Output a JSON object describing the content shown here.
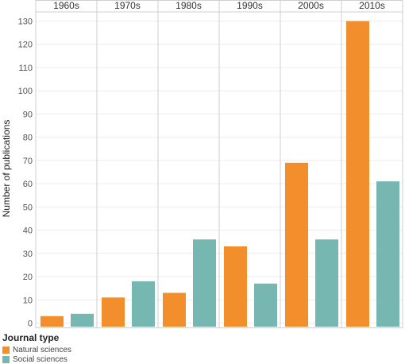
{
  "chart_data": {
    "type": "bar",
    "categories": [
      "1960s",
      "1970s",
      "1980s",
      "1990s",
      "2000s",
      "2010s"
    ],
    "series": [
      {
        "name": "Natural sciences",
        "color": "#F28E2B",
        "values": [
          3,
          11,
          13,
          33,
          69,
          130
        ]
      },
      {
        "name": "Social sciences",
        "color": "#76B7B2",
        "values": [
          4,
          18,
          36,
          17,
          36,
          61
        ]
      }
    ],
    "ylabel": "Number of publications",
    "ylim": [
      0,
      138
    ],
    "yticks": [
      0,
      10,
      20,
      30,
      40,
      50,
      60,
      70,
      80,
      90,
      100,
      110,
      120,
      130
    ],
    "grid": true,
    "legend": {
      "title": "Journal type",
      "position": "bottom-left"
    }
  }
}
